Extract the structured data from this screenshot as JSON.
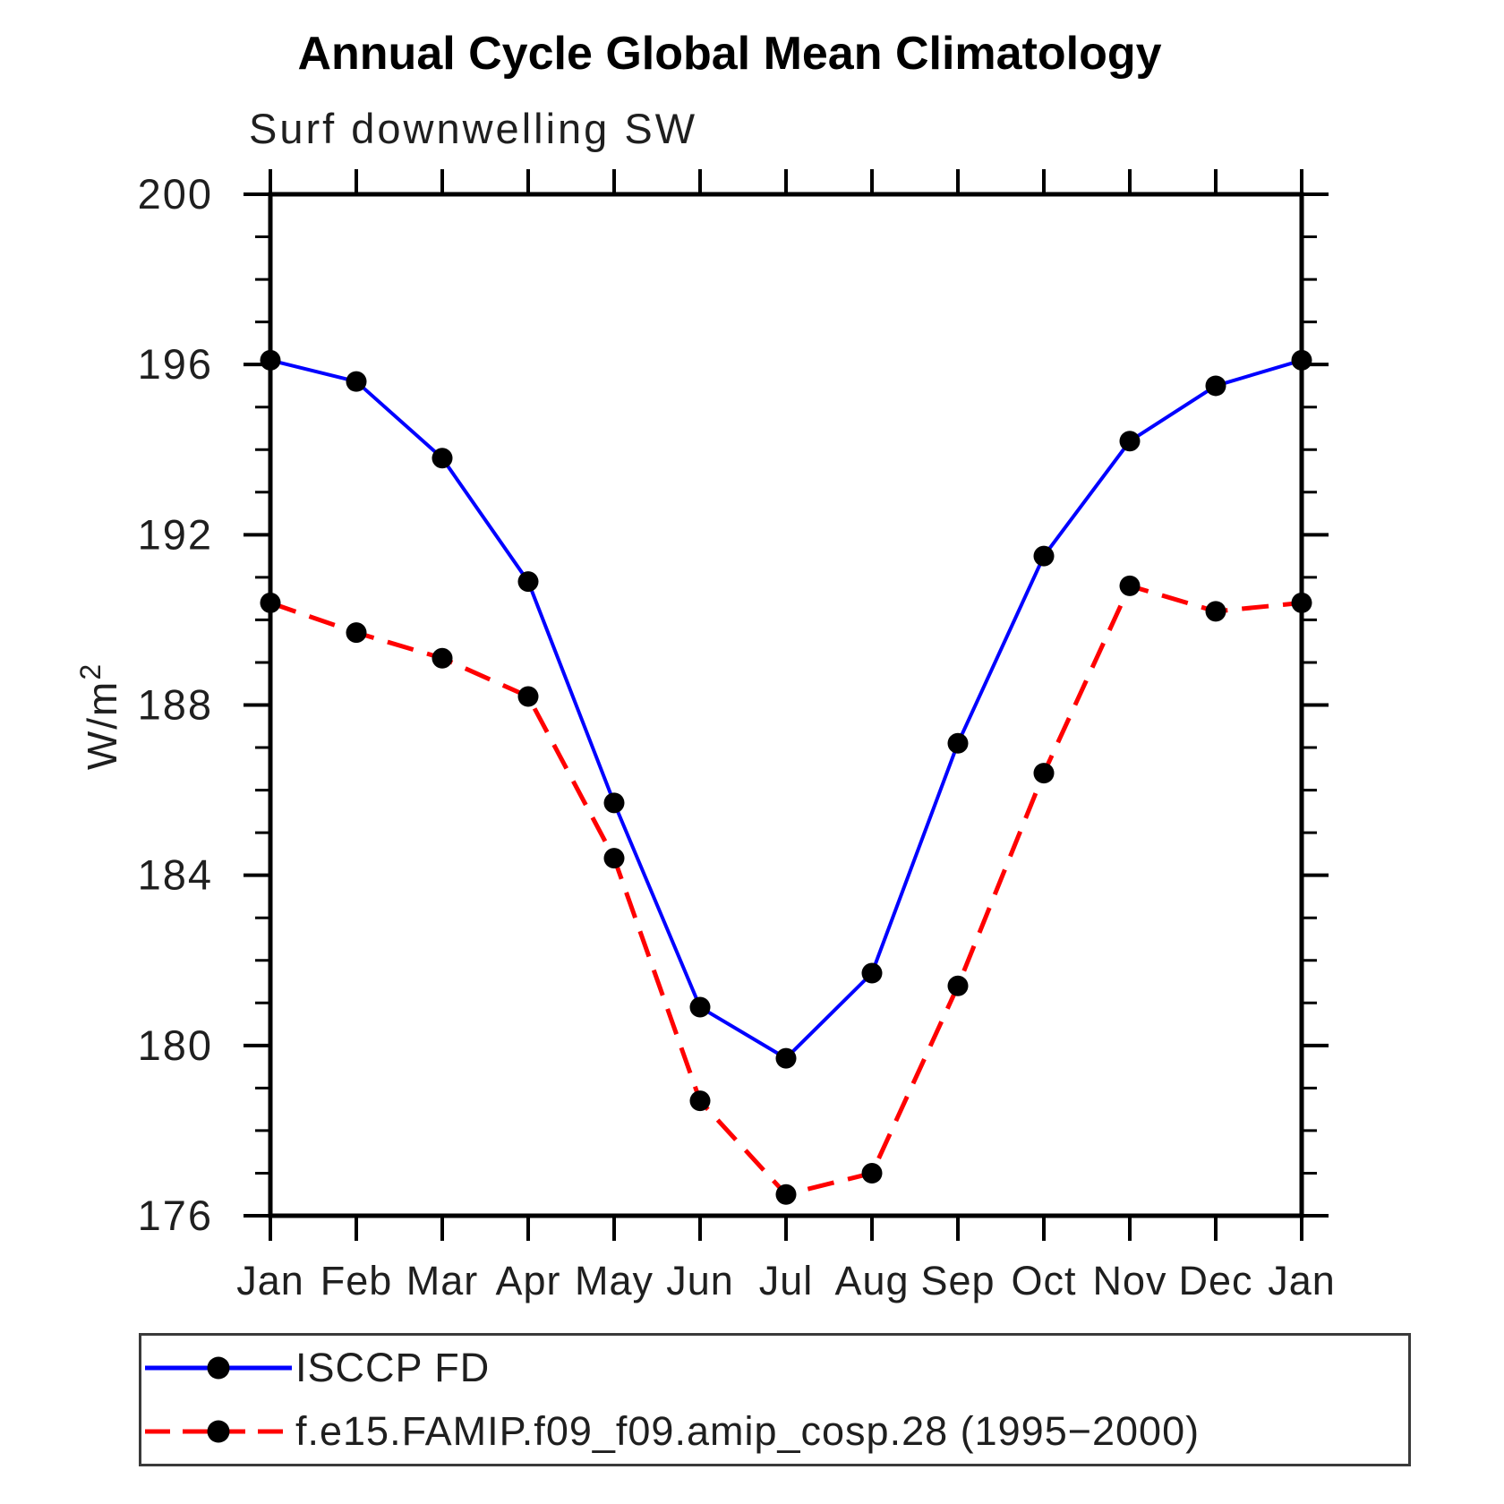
{
  "title": "Annual Cycle Global Mean Climatology",
  "subtitle": "Surf downwelling SW",
  "chart_data": {
    "type": "line",
    "title": "Annual Cycle Global Mean Climatology",
    "subtitle": "Surf downwelling SW",
    "x_categories": [
      "Jan",
      "Feb",
      "Mar",
      "Apr",
      "May",
      "Jun",
      "Jul",
      "Aug",
      "Sep",
      "Oct",
      "Nov",
      "Dec",
      "Jan"
    ],
    "ylabel": "W/m²",
    "ylabel_main": "W/m",
    "ylabel_sup": "2",
    "ylim": [
      176,
      200
    ],
    "ytick_major_step": 4,
    "ytick_minor_step": 1,
    "ytick_labels": [
      "176",
      "180",
      "184",
      "188",
      "192",
      "196",
      "200"
    ],
    "grid": false,
    "legend_position": "bottom",
    "axis_color": "#000000",
    "marker_color": "#000000",
    "series": [
      {
        "name": "ISCCP FD",
        "color": "#0000ff",
        "style": "solid",
        "marker": "filled-circle",
        "values": [
          196.1,
          195.6,
          193.8,
          190.9,
          185.7,
          180.9,
          179.7,
          181.7,
          187.1,
          191.5,
          194.2,
          195.5,
          196.1
        ]
      },
      {
        "name": "f.e15.FAMIP.f09_f09.amip_cosp.28 (1995−2000)",
        "color": "#ff0000",
        "style": "dashed",
        "marker": "filled-circle",
        "values": [
          190.4,
          189.7,
          189.1,
          188.2,
          184.4,
          178.7,
          176.5,
          177.0,
          181.4,
          186.4,
          190.8,
          190.2,
          190.4
        ]
      }
    ]
  }
}
